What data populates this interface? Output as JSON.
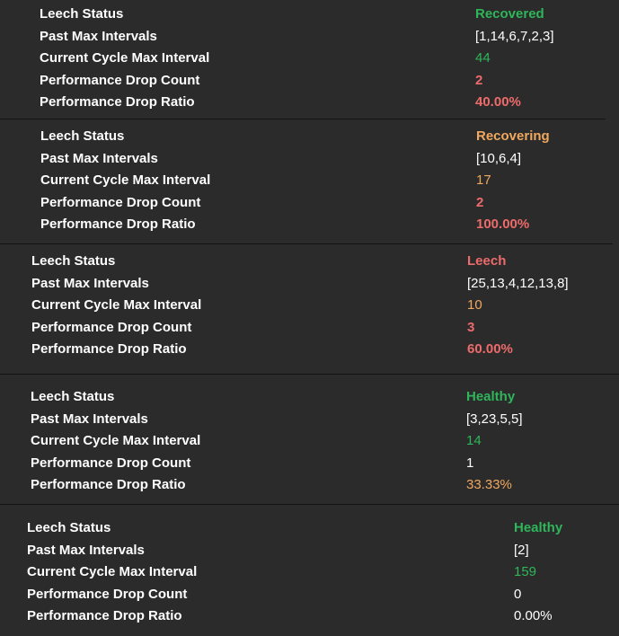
{
  "labels": {
    "status": "Leech Status",
    "past": "Past Max Intervals",
    "current": "Current Cycle Max Interval",
    "drop_count": "Performance Drop Count",
    "drop_ratio": "Performance Drop Ratio"
  },
  "colors": {
    "green": "#2fb55a",
    "orange": "#f0a860",
    "red": "#ee6b6b",
    "white": "#ffffff",
    "background": "#2b2b2b",
    "separator": "#141414"
  },
  "cards": [
    {
      "status": "Recovered",
      "past_max_intervals": "[1,14,6,7,2,3]",
      "current_cycle_max_interval": "44",
      "performance_drop_count": "2",
      "performance_drop_ratio": "40.00%"
    },
    {
      "status": "Recovering",
      "past_max_intervals": "[10,6,4]",
      "current_cycle_max_interval": "17",
      "performance_drop_count": "2",
      "performance_drop_ratio": "100.00%"
    },
    {
      "status": "Leech",
      "past_max_intervals": "[25,13,4,12,13,8]",
      "current_cycle_max_interval": "10",
      "performance_drop_count": "3",
      "performance_drop_ratio": "60.00%"
    },
    {
      "status": "Healthy",
      "past_max_intervals": "[3,23,5,5]",
      "current_cycle_max_interval": "14",
      "performance_drop_count": "1",
      "performance_drop_ratio": "33.33%"
    },
    {
      "status": "Healthy",
      "past_max_intervals": "[2]",
      "current_cycle_max_interval": "159",
      "performance_drop_count": "0",
      "performance_drop_ratio": "0.00%"
    }
  ]
}
